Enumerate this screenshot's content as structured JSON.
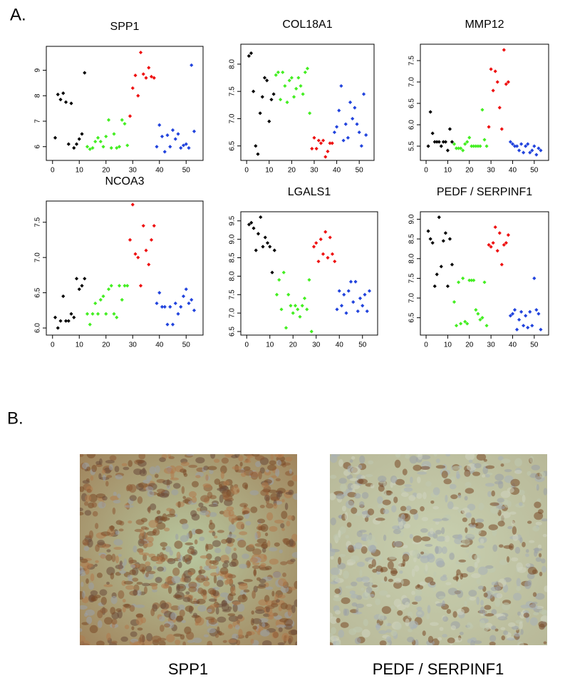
{
  "panel_a": "A.",
  "panel_b": "B.",
  "images": [
    {
      "caption": "SPP1"
    },
    {
      "caption": "PEDF / SERPINF1"
    }
  ],
  "chart_data": [
    {
      "type": "scatter",
      "title": "SPP1",
      "xlim": [
        -1,
        55
      ],
      "xticks": [
        0,
        10,
        20,
        30,
        40,
        50
      ],
      "ylim": [
        5.6,
        9.8
      ],
      "yticks": [
        6,
        7,
        8,
        9
      ],
      "series": [
        {
          "color": "#000000",
          "x": [
            1,
            2,
            3,
            4,
            5,
            6,
            7,
            8,
            9,
            10,
            11,
            12
          ],
          "values": [
            6.35,
            8.05,
            7.85,
            8.1,
            7.75,
            6.1,
            7.7,
            5.95,
            6.1,
            6.3,
            6.5,
            8.9
          ]
        },
        {
          "color": "#44ee22",
          "x": [
            13,
            14,
            15,
            16,
            17,
            18,
            19,
            20,
            21,
            22,
            23,
            24,
            25,
            26,
            27,
            28
          ],
          "values": [
            6.0,
            5.9,
            5.95,
            6.2,
            6.35,
            6.2,
            6.0,
            6.4,
            7.05,
            5.95,
            6.5,
            5.95,
            6.0,
            7.05,
            6.9,
            6.05
          ]
        },
        {
          "color": "#ee1111",
          "x": [
            29,
            30,
            31,
            32,
            33,
            34,
            35,
            36,
            37,
            38
          ],
          "values": [
            7.2,
            8.3,
            8.8,
            8.0,
            9.7,
            8.85,
            8.7,
            9.1,
            8.75,
            8.7
          ]
        },
        {
          "color": "#2244dd",
          "x": [
            39,
            40,
            41,
            42,
            43,
            44,
            45,
            46,
            47,
            48,
            49,
            50,
            51,
            52,
            53
          ],
          "values": [
            6.0,
            6.85,
            6.4,
            5.8,
            6.45,
            6.0,
            6.65,
            6.3,
            6.5,
            5.95,
            6.05,
            6.1,
            5.95,
            9.2,
            6.6
          ]
        }
      ]
    },
    {
      "type": "scatter",
      "title": "COL18A1",
      "xlim": [
        -1,
        55
      ],
      "xticks": [
        0,
        10,
        20,
        30,
        40,
        50
      ],
      "ylim": [
        6.3,
        8.3
      ],
      "yticks": [
        6.5,
        {
          "value": 7,
          "label": "7.0"
        },
        7.5,
        {
          "value": 8,
          "label": "8.0"
        }
      ],
      "series": [
        {
          "color": "#000000",
          "x": [
            1,
            2,
            3,
            4,
            5,
            6,
            7,
            8,
            9,
            10,
            11,
            12
          ],
          "values": [
            8.15,
            8.2,
            7.5,
            6.5,
            6.35,
            7.1,
            7.4,
            7.75,
            7.7,
            6.95,
            7.35,
            7.45
          ]
        },
        {
          "color": "#44ee22",
          "x": [
            13,
            14,
            15,
            16,
            17,
            18,
            19,
            20,
            21,
            22,
            23,
            24,
            25,
            26,
            27,
            28
          ],
          "values": [
            7.8,
            7.85,
            7.35,
            7.85,
            7.6,
            7.3,
            7.7,
            7.75,
            7.4,
            7.55,
            7.75,
            7.6,
            7.45,
            7.85,
            7.92,
            7.1
          ]
        },
        {
          "color": "#ee1111",
          "x": [
            29,
            30,
            31,
            32,
            33,
            34,
            35,
            36,
            37,
            38
          ],
          "values": [
            6.45,
            6.65,
            6.45,
            6.6,
            6.55,
            6.6,
            6.3,
            6.4,
            6.55,
            6.55
          ]
        },
        {
          "color": "#2244dd",
          "x": [
            39,
            40,
            41,
            42,
            43,
            44,
            45,
            46,
            47,
            48,
            49,
            50,
            51,
            52,
            53
          ],
          "values": [
            6.75,
            6.85,
            7.15,
            7.6,
            6.6,
            6.9,
            6.65,
            7.3,
            7.0,
            7.2,
            6.9,
            6.75,
            6.5,
            7.45,
            6.7
          ]
        }
      ]
    },
    {
      "type": "scatter",
      "title": "MMP12",
      "xlim": [
        -1,
        55
      ],
      "xticks": [
        0,
        10,
        20,
        30,
        40,
        50
      ],
      "ylim": [
        5.25,
        7.8
      ],
      "yticks": [
        5.5,
        {
          "value": 6,
          "label": "6.0"
        },
        6.5,
        {
          "value": 7,
          "label": "7.0"
        },
        7.5
      ],
      "series": [
        {
          "color": "#000000",
          "x": [
            1,
            2,
            3,
            4,
            5,
            6,
            7,
            8,
            9,
            10,
            11,
            12
          ],
          "values": [
            5.5,
            6.3,
            5.8,
            5.6,
            5.6,
            5.6,
            5.5,
            5.6,
            5.6,
            5.4,
            5.9,
            5.6
          ]
        },
        {
          "color": "#44ee22",
          "x": [
            13,
            14,
            15,
            16,
            17,
            18,
            19,
            20,
            21,
            22,
            23,
            24,
            25,
            26,
            27,
            28
          ],
          "values": [
            5.55,
            5.45,
            5.45,
            5.45,
            5.4,
            5.55,
            5.6,
            5.7,
            5.5,
            5.5,
            5.5,
            5.5,
            5.5,
            6.35,
            5.65,
            5.5
          ]
        },
        {
          "color": "#ee1111",
          "x": [
            29,
            30,
            31,
            32,
            33,
            34,
            35,
            36,
            37,
            38
          ],
          "values": [
            5.95,
            7.3,
            6.8,
            7.25,
            7.0,
            6.4,
            5.9,
            7.75,
            6.95,
            7.0
          ]
        },
        {
          "color": "#2244dd",
          "x": [
            39,
            40,
            41,
            42,
            43,
            44,
            45,
            46,
            47,
            48,
            49,
            50,
            51,
            52,
            53
          ],
          "values": [
            5.6,
            5.55,
            5.5,
            5.5,
            5.4,
            5.55,
            5.35,
            5.5,
            5.55,
            5.35,
            5.4,
            5.5,
            5.3,
            5.45,
            5.4
          ]
        }
      ]
    },
    {
      "type": "scatter",
      "title": "NCOA3",
      "xlim": [
        -1,
        55
      ],
      "xticks": [
        0,
        10,
        20,
        30,
        40,
        50
      ],
      "ylim": [
        5.95,
        7.75
      ],
      "yticks": [
        {
          "value": 6,
          "label": "6.0"
        },
        6.5,
        {
          "value": 7,
          "label": "7.0"
        },
        7.5
      ],
      "series": [
        {
          "color": "#000000",
          "x": [
            1,
            2,
            3,
            4,
            5,
            6,
            7,
            8,
            9,
            10,
            11,
            12
          ],
          "values": [
            6.15,
            6.0,
            6.1,
            6.45,
            6.1,
            6.1,
            6.2,
            6.15,
            6.7,
            6.55,
            6.6,
            6.7
          ]
        },
        {
          "color": "#44ee22",
          "x": [
            13,
            14,
            15,
            16,
            17,
            18,
            19,
            20,
            21,
            22,
            23,
            24,
            25,
            26,
            27,
            28
          ],
          "values": [
            6.2,
            6.05,
            6.2,
            6.35,
            6.2,
            6.4,
            6.45,
            6.2,
            6.55,
            6.6,
            6.2,
            6.15,
            6.6,
            6.4,
            6.6,
            6.6
          ]
        },
        {
          "color": "#ee1111",
          "x": [
            29,
            30,
            31,
            32,
            33,
            34,
            35,
            36,
            37,
            38
          ],
          "values": [
            7.25,
            7.75,
            7.05,
            7.0,
            6.6,
            7.45,
            7.1,
            6.9,
            7.25,
            7.45
          ]
        },
        {
          "color": "#2244dd",
          "x": [
            39,
            40,
            41,
            42,
            43,
            44,
            45,
            46,
            47,
            48,
            49,
            50,
            51,
            52,
            53
          ],
          "values": [
            6.35,
            6.5,
            6.3,
            6.3,
            6.05,
            6.3,
            6.05,
            6.35,
            6.2,
            6.3,
            6.45,
            6.55,
            6.35,
            6.4,
            6.25
          ]
        }
      ]
    },
    {
      "type": "scatter",
      "title": "LGALS1",
      "xlim": [
        -1,
        55
      ],
      "xticks": [
        0,
        10,
        20,
        30,
        40,
        50
      ],
      "ylim": [
        6.5,
        9.65
      ],
      "yticks": [
        6.5,
        {
          "value": 7,
          "label": "7.0"
        },
        7.5,
        {
          "value": 8,
          "label": "8.0"
        },
        8.5,
        {
          "value": 9,
          "label": "9.0"
        },
        9.5
      ],
      "series": [
        {
          "color": "#000000",
          "x": [
            1,
            2,
            3,
            4,
            5,
            6,
            7,
            8,
            9,
            10,
            11,
            12
          ],
          "values": [
            9.4,
            9.45,
            9.3,
            8.7,
            9.15,
            9.6,
            8.8,
            9.05,
            8.9,
            8.8,
            8.1,
            8.7
          ]
        },
        {
          "color": "#44ee22",
          "x": [
            13,
            14,
            15,
            16,
            17,
            18,
            19,
            20,
            21,
            22,
            23,
            24,
            25,
            26,
            27,
            28
          ],
          "values": [
            7.5,
            7.9,
            7.1,
            8.1,
            6.6,
            7.5,
            7.2,
            7.0,
            7.2,
            7.1,
            6.9,
            7.2,
            7.4,
            7.1,
            7.9,
            6.5
          ]
        },
        {
          "color": "#ee1111",
          "x": [
            29,
            30,
            31,
            32,
            33,
            34,
            35,
            36,
            37,
            38
          ],
          "values": [
            8.8,
            8.9,
            8.4,
            9.0,
            8.6,
            9.2,
            8.5,
            9.05,
            8.6,
            8.4
          ]
        },
        {
          "color": "#2244dd",
          "x": [
            39,
            40,
            41,
            42,
            43,
            44,
            45,
            46,
            47,
            48,
            49,
            50,
            51,
            52,
            53
          ],
          "values": [
            7.1,
            7.6,
            7.2,
            7.5,
            7.0,
            7.6,
            7.85,
            7.3,
            7.85,
            7.05,
            7.4,
            7.2,
            7.5,
            7.05,
            7.6
          ]
        }
      ]
    },
    {
      "type": "scatter",
      "title": "PEDF / SERPINF1",
      "xlim": [
        -1,
        55
      ],
      "xticks": [
        0,
        10,
        20,
        30,
        40,
        50
      ],
      "ylim": [
        6.15,
        9.1
      ],
      "yticks": [
        6.5,
        {
          "value": 7,
          "label": "7.0"
        },
        7.5,
        {
          "value": 8,
          "label": "8.0"
        },
        8.5,
        {
          "value": 9,
          "label": "9.0"
        }
      ],
      "series": [
        {
          "color": "#000000",
          "x": [
            1,
            2,
            3,
            4,
            5,
            6,
            7,
            8,
            9,
            10,
            11,
            12
          ],
          "values": [
            8.7,
            8.5,
            8.4,
            7.3,
            7.6,
            9.05,
            7.8,
            8.45,
            8.65,
            7.3,
            8.5,
            7.85
          ]
        },
        {
          "color": "#44ee22",
          "x": [
            13,
            14,
            15,
            16,
            17,
            18,
            19,
            20,
            21,
            22,
            23,
            24,
            25,
            26,
            27,
            28
          ],
          "values": [
            6.9,
            6.3,
            7.4,
            6.35,
            7.5,
            6.4,
            6.35,
            7.45,
            7.45,
            7.45,
            6.7,
            6.6,
            6.45,
            6.5,
            7.4,
            6.3
          ]
        },
        {
          "color": "#ee1111",
          "x": [
            29,
            30,
            31,
            32,
            33,
            34,
            35,
            36,
            37,
            38
          ],
          "values": [
            8.35,
            8.3,
            8.4,
            8.8,
            8.2,
            8.65,
            7.85,
            8.35,
            8.4,
            8.6
          ]
        },
        {
          "color": "#2244dd",
          "x": [
            39,
            40,
            41,
            42,
            43,
            44,
            45,
            46,
            47,
            48,
            49,
            50,
            51,
            52,
            53
          ],
          "values": [
            6.55,
            6.6,
            6.7,
            6.2,
            6.45,
            6.65,
            6.3,
            6.55,
            6.25,
            6.65,
            6.3,
            7.5,
            6.7,
            6.6,
            6.2
          ]
        }
      ]
    }
  ]
}
